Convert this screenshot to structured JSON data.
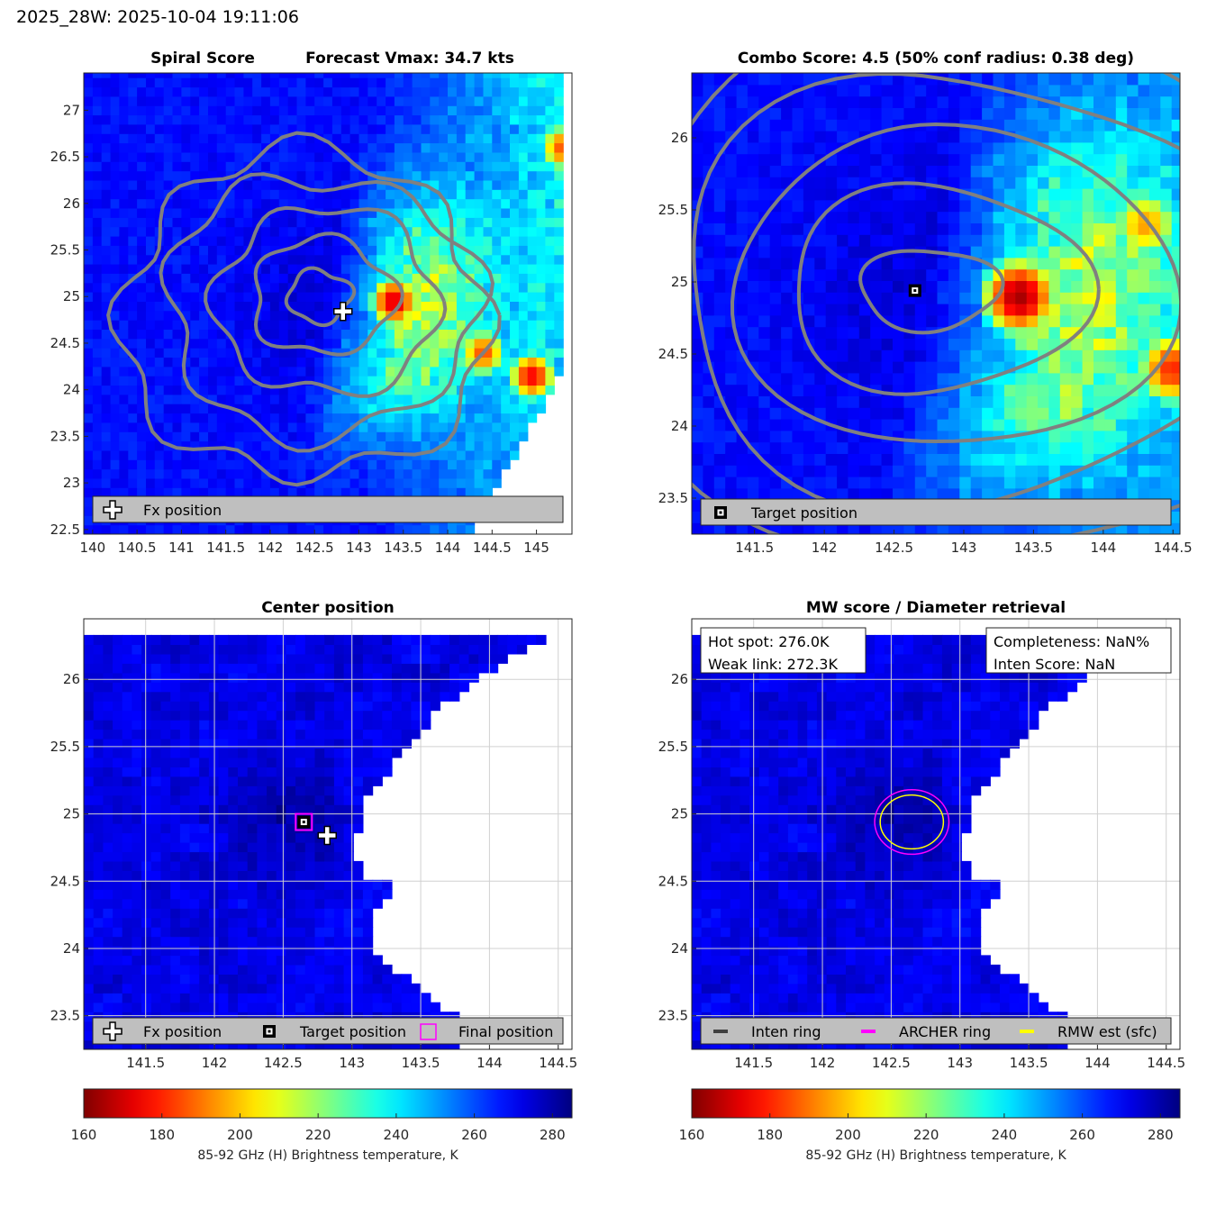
{
  "figure_title": "2025_28W: 2025-10-04 19:11:06",
  "colors": {
    "contour": "#808080",
    "axis_text": "#262626",
    "archer_ring": "#ff00ff",
    "rmw_ring": "#ffff00",
    "inten_ring": "#404040",
    "legend_bg": "#bfbfbf"
  },
  "colormap": "jet_reversed",
  "chart_data": [
    {
      "type": "heatmap",
      "id": "spiral",
      "title_left": "Spiral Score",
      "title_right": "Forecast Vmax: 34.7 kts",
      "xlim": [
        139.9,
        145.4
      ],
      "ylim": [
        22.45,
        27.4
      ],
      "xticks": [
        140,
        140.5,
        141,
        141.5,
        142,
        142.5,
        143,
        143.5,
        144,
        144.5,
        145
      ],
      "xtick_labels": [
        "140",
        "140.5",
        "141",
        "141.5",
        "142",
        "142.5",
        "143",
        "143.5",
        "144",
        "144.5",
        "145"
      ],
      "yticks": [
        22.5,
        23,
        23.5,
        24,
        24.5,
        25,
        25.5,
        26,
        26.5,
        27
      ],
      "ytick_labels": [
        "22.5",
        "23",
        "23.5",
        "24",
        "24.5",
        "25",
        "25.5",
        "26",
        "26.5",
        "27"
      ],
      "grid": false,
      "markers": [
        {
          "kind": "fx-cross",
          "lon": 142.82,
          "lat": 24.84
        }
      ],
      "legend": {
        "placement": "bottom",
        "entries": [
          {
            "symbol": "cross",
            "label": "Fx position"
          }
        ]
      },
      "cold_core": {
        "lon": 142.6,
        "lat": 25.0,
        "tb": 280
      },
      "hot_spots": [
        {
          "lon": 143.4,
          "lat": 24.95,
          "tb": 170
        },
        {
          "lon": 144.95,
          "lat": 24.15,
          "tb": 175
        },
        {
          "lon": 144.4,
          "lat": 24.4,
          "tb": 185
        },
        {
          "lon": 145.3,
          "lat": 26.6,
          "tb": 185
        }
      ]
    },
    {
      "type": "heatmap",
      "id": "combo",
      "title": "Combo Score: 4.5  (50% conf radius: 0.38 deg)",
      "xlim": [
        141.05,
        144.55
      ],
      "ylim": [
        23.25,
        26.45
      ],
      "xticks": [
        141.5,
        142,
        142.5,
        143,
        143.5,
        144,
        144.5
      ],
      "xtick_labels": [
        "141.5",
        "142",
        "142.5",
        "143",
        "143.5",
        "144",
        "144.5"
      ],
      "yticks": [
        23.5,
        24,
        24.5,
        25,
        25.5,
        26
      ],
      "ytick_labels": [
        "23.5",
        "24",
        "24.5",
        "25",
        "25.5",
        "26"
      ],
      "grid": false,
      "markers": [
        {
          "kind": "target-square",
          "lon": 142.65,
          "lat": 24.94
        }
      ],
      "legend": {
        "placement": "bottom",
        "entries": [
          {
            "symbol": "square",
            "label": "Target position"
          }
        ]
      },
      "cold_core": {
        "lon": 142.7,
        "lat": 24.95,
        "tb": 282
      },
      "hot_spots": [
        {
          "lon": 143.4,
          "lat": 24.9,
          "tb": 165
        },
        {
          "lon": 144.5,
          "lat": 24.4,
          "tb": 180
        },
        {
          "lon": 144.3,
          "lat": 25.4,
          "tb": 195
        }
      ]
    },
    {
      "type": "heatmap",
      "id": "center",
      "title": "Center position",
      "xlim": [
        141.05,
        144.6
      ],
      "ylim": [
        23.25,
        26.45
      ],
      "xticks": [
        141.5,
        142,
        142.5,
        143,
        143.5,
        144,
        144.5
      ],
      "xtick_labels": [
        "141.5",
        "142",
        "142.5",
        "143",
        "143.5",
        "144",
        "144.5"
      ],
      "yticks": [
        23.5,
        24,
        24.5,
        25,
        25.5,
        26
      ],
      "ytick_labels": [
        "23.5",
        "24",
        "24.5",
        "25",
        "25.5",
        "26"
      ],
      "grid": true,
      "markers": [
        {
          "kind": "final-square",
          "lon": 142.65,
          "lat": 24.94
        },
        {
          "kind": "target-square",
          "lon": 142.65,
          "lat": 24.94
        },
        {
          "kind": "fx-cross",
          "lon": 142.82,
          "lat": 24.84
        }
      ],
      "legend": {
        "placement": "bottom",
        "entries": [
          {
            "symbol": "cross",
            "label": "Fx position"
          },
          {
            "symbol": "square",
            "label": "Target position"
          },
          {
            "symbol": "magenta-square",
            "label": "Final position"
          }
        ]
      }
    },
    {
      "type": "heatmap",
      "id": "mw",
      "title": "MW score / Diameter retrieval",
      "xlim": [
        141.05,
        144.6
      ],
      "ylim": [
        23.25,
        26.45
      ],
      "xticks": [
        141.5,
        142,
        142.5,
        143,
        143.5,
        144,
        144.5
      ],
      "xtick_labels": [
        "141.5",
        "142",
        "142.5",
        "143",
        "143.5",
        "144",
        "144.5"
      ],
      "yticks": [
        23.5,
        24,
        24.5,
        25,
        25.5,
        26
      ],
      "ytick_labels": [
        "23.5",
        "24",
        "24.5",
        "25",
        "25.5",
        "26"
      ],
      "grid": true,
      "rings": [
        {
          "kind": "archer",
          "lon": 142.65,
          "lat": 24.94,
          "r_lon": 0.27,
          "r_lat": 0.24
        },
        {
          "kind": "rmw",
          "lon": 142.65,
          "lat": 24.94,
          "r_lon": 0.23,
          "r_lat": 0.2
        }
      ],
      "info_left": [
        "Hot spot: 276.0K",
        "Weak link: 272.3K"
      ],
      "info_right": [
        "Completeness: NaN%",
        "Inten Score: NaN"
      ],
      "legend": {
        "placement": "bottom",
        "entries": [
          {
            "symbol": "dark-line",
            "label": "Inten ring"
          },
          {
            "symbol": "magenta-line",
            "label": "ARCHER ring"
          },
          {
            "symbol": "yellow-line",
            "label": "RMW est (sfc)"
          }
        ]
      }
    }
  ],
  "swath_edge_lon_at_lat": [
    [
      23.2,
      143.75
    ],
    [
      23.5,
      143.75
    ],
    [
      23.7,
      143.5
    ],
    [
      23.85,
      143.3
    ],
    [
      24.0,
      143.15
    ],
    [
      24.2,
      143.15
    ],
    [
      24.35,
      143.2
    ],
    [
      24.45,
      143.35
    ],
    [
      24.55,
      143.05
    ],
    [
      24.65,
      143.05
    ],
    [
      24.8,
      143.0
    ],
    [
      24.95,
      143.08
    ],
    [
      25.1,
      143.1
    ],
    [
      25.25,
      143.2
    ],
    [
      25.45,
      143.38
    ],
    [
      25.6,
      143.5
    ],
    [
      25.8,
      143.65
    ],
    [
      25.95,
      143.85
    ],
    [
      26.1,
      144.05
    ],
    [
      26.25,
      144.3
    ],
    [
      26.35,
      144.55
    ]
  ],
  "colorbars": [
    {
      "id": "left",
      "range": [
        160,
        285
      ],
      "ticks": [
        160,
        180,
        200,
        220,
        240,
        260,
        280
      ],
      "tick_labels": [
        "160",
        "180",
        "200",
        "220",
        "240",
        "260",
        "280"
      ],
      "label": "85-92 GHz (H) Brightness temperature, K"
    },
    {
      "id": "right",
      "range": [
        160,
        285
      ],
      "ticks": [
        160,
        180,
        200,
        220,
        240,
        260,
        280
      ],
      "tick_labels": [
        "160",
        "180",
        "200",
        "220",
        "240",
        "260",
        "280"
      ],
      "label": "85-92 GHz (H) Brightness temperature, K"
    }
  ]
}
